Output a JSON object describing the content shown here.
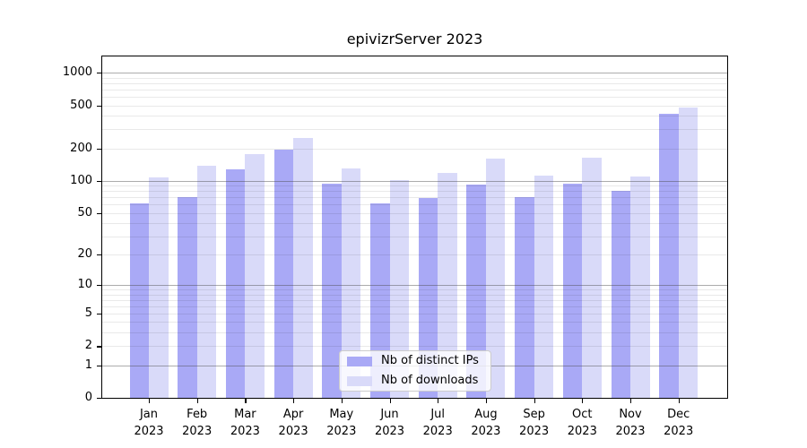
{
  "chart_data": {
    "type": "bar",
    "title": "epivizrServer 2023",
    "y_scale": "pseudo-log (log10 of value+1)",
    "categories": [
      "Jan",
      "Feb",
      "Mar",
      "Apr",
      "May",
      "Jun",
      "Jul",
      "Aug",
      "Sep",
      "Oct",
      "Nov",
      "Dec"
    ],
    "x_year_label": "2023",
    "series": [
      {
        "name": "Nb of distinct IPs",
        "color": "#a9a9f6",
        "values": [
          61,
          70,
          128,
          195,
          94,
          61,
          69,
          92,
          70,
          94,
          80,
          415
        ]
      },
      {
        "name": "Nb of downloads",
        "color": "#d9daf9",
        "values": [
          107,
          138,
          177,
          250,
          130,
          102,
          118,
          160,
          112,
          163,
          110,
          478
        ]
      }
    ],
    "yticks": [
      0,
      1,
      2,
      5,
      10,
      20,
      50,
      100,
      200,
      500,
      1000
    ],
    "ylim": [
      0,
      1400
    ],
    "grid": "horizontal major + minor",
    "legend_position": "bottom-center"
  },
  "colors": {
    "bar_ips": "#a9a9f6",
    "bar_downloads": "#d9daf9",
    "axis": "#000000",
    "grid_major": "#b0b0b0",
    "grid_minor": "#eaeaea",
    "legend_border": "#cccccc",
    "background": "#ffffff"
  }
}
